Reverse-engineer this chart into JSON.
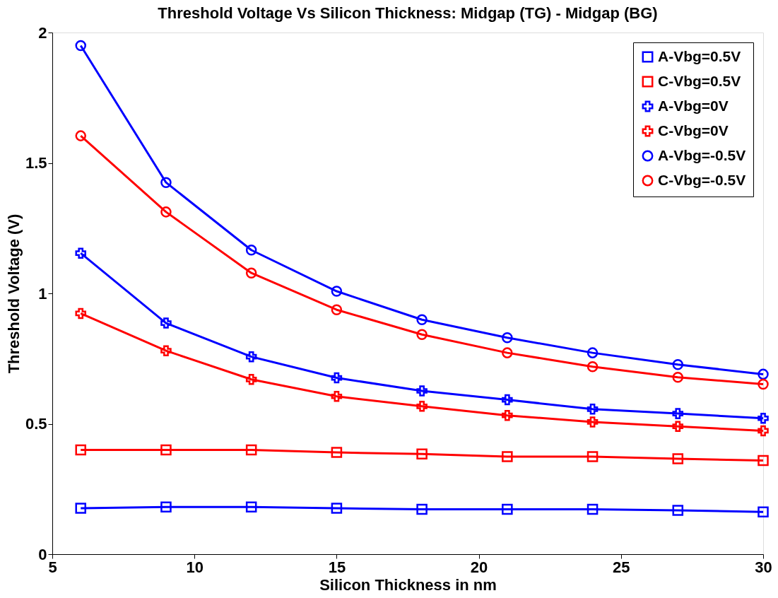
{
  "chart_data": {
    "type": "line",
    "title": "Threshold Voltage Vs Silicon Thickness: Midgap (TG) - Midgap (BG)",
    "xlabel": "Silicon Thickness  in nm",
    "ylabel": "Threshold Voltage (V)",
    "x": [
      6,
      9,
      12,
      15,
      18,
      21,
      24,
      27,
      30
    ],
    "xlim": [
      5,
      30
    ],
    "xticks": [
      5,
      10,
      15,
      20,
      25,
      30
    ],
    "ylim": [
      0,
      2
    ],
    "yticks": [
      0,
      0.5,
      1,
      1.5,
      2
    ],
    "grid": false,
    "legend": "top right",
    "line_style": "solid",
    "series": [
      {
        "name": "A-Vbg=0.5V",
        "color": "#0000ff",
        "marker": "square",
        "values": [
          0.176,
          0.181,
          0.181,
          0.176,
          0.172,
          0.172,
          0.172,
          0.168,
          0.162
        ]
      },
      {
        "name": "C-Vbg=0.5V",
        "color": "#ff0000",
        "marker": "square",
        "values": [
          0.4,
          0.4,
          0.4,
          0.39,
          0.384,
          0.374,
          0.374,
          0.366,
          0.359
        ]
      },
      {
        "name": "A-Vbg=0V",
        "color": "#0000ff",
        "marker": "cross",
        "values": [
          1.154,
          0.886,
          0.757,
          0.676,
          0.626,
          0.592,
          0.556,
          0.539,
          0.521
        ]
      },
      {
        "name": "C-Vbg=0V",
        "color": "#ff0000",
        "marker": "cross",
        "values": [
          0.923,
          0.78,
          0.67,
          0.605,
          0.567,
          0.532,
          0.507,
          0.49,
          0.473
        ]
      },
      {
        "name": "A-Vbg=-0.5V",
        "color": "#0000ff",
        "marker": "circle",
        "values": [
          1.95,
          1.425,
          1.166,
          1.008,
          0.899,
          0.83,
          0.772,
          0.727,
          0.69
        ]
      },
      {
        "name": "C-Vbg=-0.5V",
        "color": "#ff0000",
        "marker": "circle",
        "values": [
          1.604,
          1.312,
          1.078,
          0.937,
          0.842,
          0.772,
          0.719,
          0.678,
          0.652
        ]
      }
    ]
  }
}
